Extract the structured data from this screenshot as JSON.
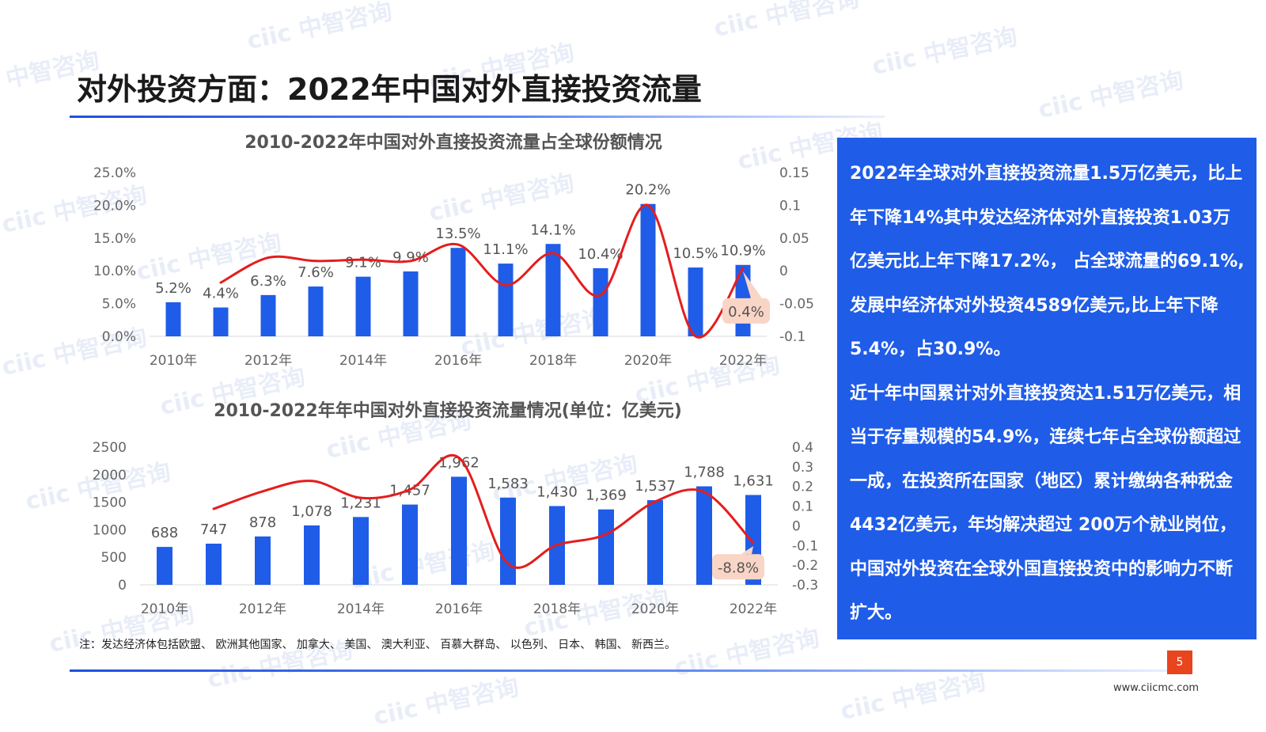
{
  "slide": {
    "title": "对外投资方面：2022年中国对外直接投资流量",
    "note": "注：发达经济体包括欧盟、 欧洲其他国家、 加拿大、 美国、 澳大利亚、 百慕大群岛、 以色列、 日本、 韩国、 新西兰。",
    "page_number": "5",
    "website": "www.ciicmc.com",
    "watermark": "ciic 中智咨询"
  },
  "panel": {
    "paragraph1": "2022年全球对外直接投资流量1.5万亿美元，比上年下降14%其中发达经济体对外直接投资1.03万亿美元比上年下降17.2%， 占全球流量的69.1%,发展中经济体对外投资4589亿美元,比上年下降5.4%，占30.9%。",
    "paragraph2": "近十年中国累计对外直接投资达1.51万亿美元，相当于存量规模的54.9%，连续七年占全球份额超过一成，在投资所在国家（地区）累计缴纳各种税金4432亿美元，年均解决超过 200万个就业岗位，中国对外投资在全球外国直接投资中的影响力不断扩大。"
  },
  "colors": {
    "bar": "#1f5ce8",
    "line": "#e51d1d",
    "callout_bg": "#f9d5c6",
    "panel_bg": "#1f5ce8"
  },
  "chart_data": [
    {
      "type": "bar",
      "title": "2010-2022年中国对外直接投资流量占全球份额情况",
      "categories": [
        "2010",
        "2011",
        "2012",
        "2013",
        "2014",
        "2015",
        "2016",
        "2017",
        "2018",
        "2019",
        "2020",
        "2021",
        "2022"
      ],
      "x_tick_labels": [
        "2010年",
        "2012年",
        "2014年",
        "2016年",
        "2018年",
        "2020年",
        "2022年"
      ],
      "series": [
        {
          "axis": "left",
          "type": "bar",
          "values": [
            5.2,
            4.4,
            6.3,
            7.6,
            9.1,
            9.9,
            13.5,
            11.1,
            14.1,
            10.4,
            20.2,
            10.5,
            10.9
          ],
          "labels": [
            "5.2%",
            "4.4%",
            "6.3%",
            "7.6%",
            "9.1%",
            "9.9%",
            "13.5%",
            "11.1%",
            "14.1%",
            "10.4%",
            "20.2%",
            "10.5%",
            "10.9%"
          ]
        },
        {
          "axis": "right",
          "type": "line",
          "values": [
            null,
            -0.018,
            0.02,
            0.015,
            0.017,
            0.015,
            0.04,
            -0.022,
            0.027,
            -0.037,
            0.1,
            -0.1,
            0.004
          ],
          "callout": "0.4%"
        }
      ],
      "y_left": {
        "ylim": [
          0,
          25
        ],
        "ticks": [
          "0.0%",
          "5.0%",
          "10.0%",
          "15.0%",
          "20.0%",
          "25.0%"
        ]
      },
      "y_right": {
        "ylim": [
          -0.1,
          0.15
        ],
        "ticks": [
          "-0.1",
          "-0.05",
          "0",
          "0.05",
          "0.1",
          "0.15"
        ]
      },
      "grid": false
    },
    {
      "type": "bar",
      "title": "2010-2022年年中国对外直接投资流量情况(单位：亿美元)",
      "categories": [
        "2010",
        "2011",
        "2012",
        "2013",
        "2014",
        "2015",
        "2016",
        "2017",
        "2018",
        "2019",
        "2020",
        "2021",
        "2022"
      ],
      "x_tick_labels": [
        "2010年",
        "2012年",
        "2014年",
        "2016年",
        "2018年",
        "2020年",
        "2022年"
      ],
      "series": [
        {
          "axis": "left",
          "type": "bar",
          "values": [
            688,
            747,
            878,
            1078,
            1231,
            1457,
            1962,
            1583,
            1430,
            1369,
            1537,
            1788,
            1631
          ],
          "labels": [
            "688",
            "747",
            "878",
            "1,078",
            "1,231",
            "1,457",
            "1,962",
            "1,583",
            "1,430",
            "1,369",
            "1,537",
            "1,788",
            "1,631"
          ]
        },
        {
          "axis": "right",
          "type": "line",
          "values": [
            null,
            0.086,
            0.175,
            0.228,
            0.142,
            0.184,
            0.346,
            -0.193,
            -0.097,
            -0.043,
            0.123,
            0.172,
            -0.088
          ],
          "callout": "-8.8%"
        }
      ],
      "y_left": {
        "ylim": [
          0,
          2500
        ],
        "ticks": [
          "0",
          "500",
          "1000",
          "1500",
          "2000",
          "2500"
        ]
      },
      "y_right": {
        "ylim": [
          -0.3,
          0.4
        ],
        "ticks": [
          "-0.3",
          "-0.2",
          "-0.1",
          "0",
          "0.1",
          "0.2",
          "0.3",
          "0.4"
        ]
      },
      "grid": false
    }
  ]
}
